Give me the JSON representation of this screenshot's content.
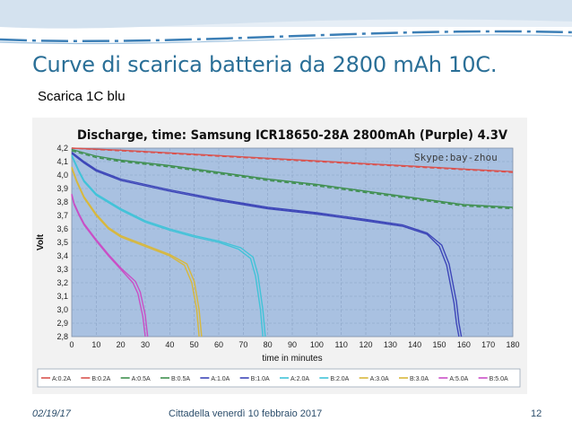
{
  "slide": {
    "title": "Curve di scarica batteria da 2800 mAh 10C.",
    "subtitle": "Scarica 1C blu",
    "footer_date": "02/19/17",
    "footer_center": "Cittadella venerdì 10 febbraio 2017",
    "page_number": "12"
  },
  "chart_data": {
    "type": "line",
    "title": "Discharge, time: Samsung ICR18650-28A 2800mAh (Purple) 4.3V",
    "watermark": "Skype:bay-zhou",
    "xlabel": "time in minutes",
    "ylabel": "Volt",
    "xlim": [
      0,
      180
    ],
    "ylim": [
      2.8,
      4.2
    ],
    "xticks": [
      0,
      10,
      20,
      30,
      40,
      50,
      60,
      70,
      80,
      90,
      100,
      110,
      120,
      130,
      140,
      150,
      160,
      170,
      180
    ],
    "yticks": [
      "2,8",
      "2,9",
      "3,0",
      "3,1",
      "3,2",
      "3,3",
      "3,4",
      "3,5",
      "3,6",
      "3,7",
      "3,8",
      "3,9",
      "4,0",
      "4,1",
      "4,2"
    ],
    "grid": true,
    "legend_position": "bottom",
    "background_color": "#a9c1e1",
    "series": [
      {
        "name": "A:0.2A",
        "color": "#d9534f",
        "x": [
          0,
          20,
          40,
          60,
          80,
          100,
          120,
          140,
          160,
          180
        ],
        "y": [
          4.2,
          4.18,
          4.16,
          4.14,
          4.12,
          4.1,
          4.08,
          4.06,
          4.04,
          4.02
        ]
      },
      {
        "name": "B:0.2A",
        "color": "#d9534f",
        "x": [
          0,
          20,
          40,
          60,
          80,
          100,
          120,
          140,
          160,
          180
        ],
        "y": [
          4.2,
          4.185,
          4.165,
          4.145,
          4.125,
          4.105,
          4.085,
          4.065,
          4.045,
          4.025
        ]
      },
      {
        "name": "A:0.5A",
        "color": "#3f8f4f",
        "x": [
          0,
          10,
          20,
          40,
          60,
          80,
          100,
          120,
          140,
          160,
          180
        ],
        "y": [
          4.18,
          4.13,
          4.1,
          4.06,
          4.01,
          3.96,
          3.92,
          3.87,
          3.82,
          3.77,
          3.75
        ]
      },
      {
        "name": "B:0.5A",
        "color": "#3f8f4f",
        "x": [
          0,
          10,
          20,
          40,
          60,
          80,
          100,
          120,
          140,
          160,
          180
        ],
        "y": [
          4.19,
          4.14,
          4.11,
          4.07,
          4.02,
          3.97,
          3.93,
          3.88,
          3.83,
          3.78,
          3.76
        ]
      },
      {
        "name": "A:1.0A",
        "color": "#3d46b8",
        "x": [
          0,
          5,
          10,
          20,
          30,
          40,
          60,
          80,
          100,
          120,
          135,
          145,
          150,
          153,
          156,
          157,
          158
        ],
        "y": [
          4.16,
          4.09,
          4.03,
          3.96,
          3.92,
          3.88,
          3.81,
          3.75,
          3.71,
          3.66,
          3.62,
          3.56,
          3.47,
          3.33,
          3.05,
          2.9,
          2.8
        ]
      },
      {
        "name": "B:1.0A",
        "color": "#3d46b8",
        "x": [
          0,
          5,
          10,
          20,
          30,
          40,
          60,
          80,
          100,
          120,
          135,
          145,
          151,
          154,
          157,
          158,
          159
        ],
        "y": [
          4.17,
          4.1,
          4.04,
          3.97,
          3.93,
          3.89,
          3.82,
          3.76,
          3.72,
          3.67,
          3.63,
          3.57,
          3.48,
          3.34,
          3.06,
          2.9,
          2.8
        ]
      },
      {
        "name": "A:2.0A",
        "color": "#41c3d8",
        "x": [
          0,
          3,
          5,
          10,
          20,
          30,
          40,
          50,
          60,
          68,
          73,
          75,
          77,
          78
        ],
        "y": [
          4.14,
          4.02,
          3.95,
          3.85,
          3.74,
          3.65,
          3.59,
          3.54,
          3.5,
          3.45,
          3.38,
          3.25,
          3.0,
          2.8
        ]
      },
      {
        "name": "B:2.0A",
        "color": "#41c3d8",
        "x": [
          0,
          3,
          5,
          10,
          20,
          30,
          40,
          50,
          60,
          69,
          74,
          76,
          78,
          79
        ],
        "y": [
          4.15,
          4.03,
          3.96,
          3.86,
          3.75,
          3.66,
          3.6,
          3.55,
          3.51,
          3.46,
          3.39,
          3.26,
          3.0,
          2.8
        ]
      },
      {
        "name": "A:3.0A",
        "color": "#d8b83c",
        "x": [
          0,
          2,
          5,
          10,
          15,
          20,
          30,
          40,
          46,
          49,
          51,
          52
        ],
        "y": [
          4.05,
          3.95,
          3.83,
          3.7,
          3.6,
          3.54,
          3.47,
          3.4,
          3.33,
          3.2,
          3.0,
          2.8
        ]
      },
      {
        "name": "B:3.0A",
        "color": "#d8b83c",
        "x": [
          0,
          2,
          5,
          10,
          15,
          20,
          30,
          40,
          47,
          50,
          52,
          53
        ],
        "y": [
          4.06,
          3.96,
          3.84,
          3.71,
          3.61,
          3.55,
          3.48,
          3.41,
          3.34,
          3.21,
          3.0,
          2.8
        ]
      },
      {
        "name": "A:5.0A",
        "color": "#c94fc6",
        "x": [
          0,
          1,
          3,
          5,
          10,
          15,
          20,
          25,
          27,
          29,
          30
        ],
        "y": [
          3.85,
          3.78,
          3.7,
          3.63,
          3.51,
          3.4,
          3.3,
          3.2,
          3.12,
          2.95,
          2.8
        ]
      },
      {
        "name": "B:5.0A",
        "color": "#c94fc6",
        "x": [
          0,
          1,
          3,
          5,
          10,
          15,
          20,
          26,
          28,
          30,
          31
        ],
        "y": [
          3.86,
          3.79,
          3.71,
          3.64,
          3.52,
          3.41,
          3.31,
          3.21,
          3.13,
          2.96,
          2.8
        ]
      }
    ]
  }
}
